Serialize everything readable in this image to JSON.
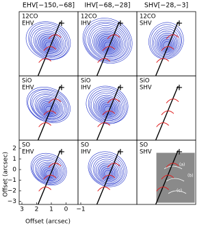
{
  "column_headers": [
    "EHV[−150,−68]",
    "IHV[−68,−28]",
    "SHV[−28,−3]"
  ],
  "panels": [
    {
      "species": "12CO",
      "range": "EHV"
    },
    {
      "species": "12CO",
      "range": "IHV"
    },
    {
      "species": "12CO",
      "range": "SHV"
    },
    {
      "species": "SiO",
      "range": "EHV"
    },
    {
      "species": "SiO",
      "range": "IHV"
    },
    {
      "species": "SiO",
      "range": "SHV"
    },
    {
      "species": "SO",
      "range": "EHV"
    },
    {
      "species": "SO",
      "range": "IHV"
    },
    {
      "species": "SO",
      "range": "SHV"
    }
  ],
  "inset_labels": [
    "(a)",
    "(b)",
    "(c)"
  ],
  "y_axis": {
    "label": "Offset (arcsec)",
    "ticks": [
      "2",
      "1",
      "0",
      "−1",
      "−2",
      "−3"
    ]
  },
  "x_axis": {
    "label": "Offset (arcsec)",
    "ticks": [
      "3",
      "2",
      "1",
      "0",
      "−1"
    ]
  }
}
